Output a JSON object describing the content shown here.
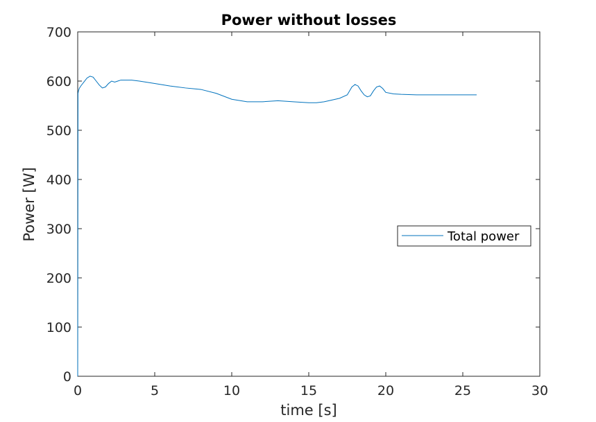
{
  "chart_data": {
    "type": "line",
    "title": "Power without losses",
    "xlabel": "time [s]",
    "ylabel": "Power [W]",
    "xlim": [
      0,
      30
    ],
    "ylim": [
      0,
      700
    ],
    "xticks": [
      0,
      5,
      10,
      15,
      20,
      25,
      30
    ],
    "yticks": [
      0,
      100,
      200,
      300,
      400,
      500,
      600,
      700
    ],
    "grid": false,
    "legend": {
      "position": "right",
      "entries": [
        "Total power"
      ]
    },
    "series": [
      {
        "name": "Total power",
        "color": "#0072bd",
        "x": [
          0,
          0.02,
          0.05,
          0.1,
          0.2,
          0.4,
          0.6,
          0.8,
          1.0,
          1.2,
          1.4,
          1.6,
          1.8,
          2.0,
          2.2,
          2.4,
          2.6,
          2.8,
          3.0,
          3.5,
          4.0,
          5.0,
          6.0,
          7.0,
          8.0,
          9.0,
          10.0,
          11.0,
          12.0,
          13.0,
          14.0,
          15.0,
          15.5,
          16.0,
          17.0,
          17.5,
          17.8,
          18.0,
          18.2,
          18.4,
          18.6,
          18.8,
          19.0,
          19.2,
          19.4,
          19.6,
          19.8,
          20.0,
          20.5,
          21.0,
          22.0,
          23.0,
          24.0,
          25.0,
          25.9
        ],
        "y": [
          0,
          575,
          580,
          585,
          590,
          598,
          606,
          610,
          608,
          600,
          592,
          586,
          588,
          595,
          600,
          598,
          600,
          602,
          602,
          602,
          600,
          595,
          590,
          586,
          583,
          575,
          563,
          558,
          558,
          560,
          558,
          556,
          556,
          558,
          565,
          572,
          588,
          593,
          590,
          580,
          572,
          568,
          570,
          580,
          588,
          590,
          585,
          577,
          574,
          573,
          572,
          572,
          572,
          572,
          572
        ]
      }
    ]
  }
}
